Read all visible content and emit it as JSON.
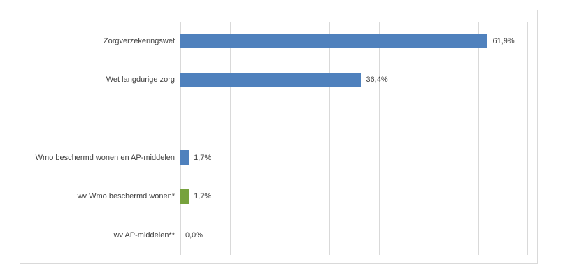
{
  "chart_data": {
    "type": "bar",
    "orientation": "horizontal",
    "title": "",
    "xlabel": "",
    "ylabel": "",
    "legend": "none",
    "grid": true,
    "xlim": [
      0,
      70
    ],
    "gridline_interval": 10,
    "categories": [
      "Zorgverzekeringswet",
      "Wet langdurige zorg",
      "",
      "Wmo beschermd wonen en AP-middelen",
      "wv Wmo beschermd wonen*",
      "wv AP-middelen**"
    ],
    "values": [
      61.9,
      36.4,
      null,
      1.7,
      1.7,
      0.0
    ],
    "value_labels": [
      "61,9%",
      "36,4%",
      "",
      "1,7%",
      "1,7%",
      "0,0%"
    ],
    "bar_colors": [
      "#4F81BD",
      "#4F81BD",
      null,
      "#4F81BD",
      "#77A23D",
      null
    ],
    "colors": {
      "bar_blue": "#4F81BD",
      "bar_green": "#77A23D",
      "gridline": "#D9D9D9",
      "frame_border": "#D9D9D9",
      "label_text": "#404040"
    }
  }
}
